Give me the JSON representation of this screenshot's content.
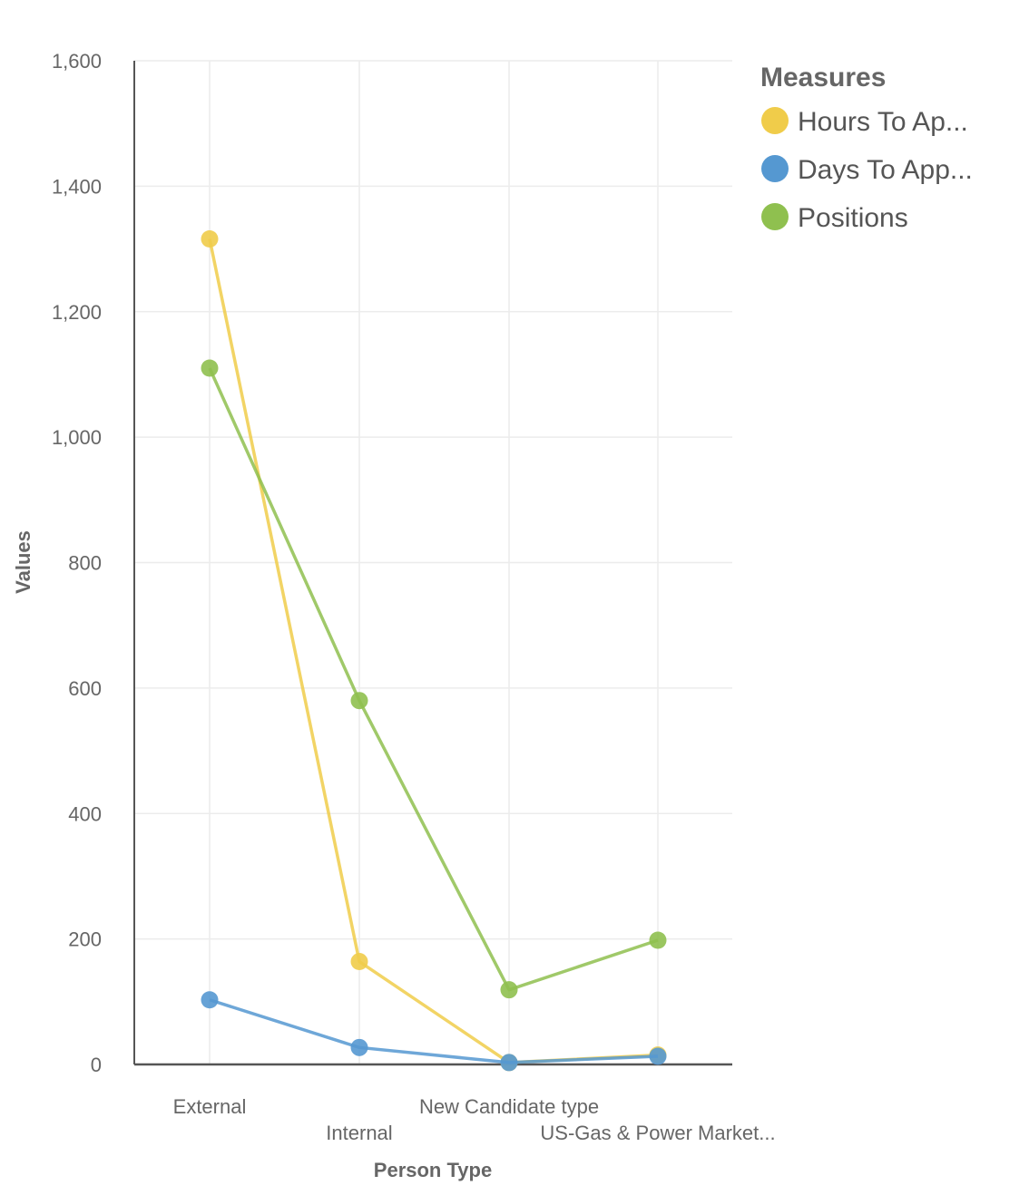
{
  "chart_data": {
    "type": "line",
    "title": "",
    "xlabel": "Person Type",
    "ylabel": "Values",
    "categories": [
      "External",
      "Internal",
      "New Candidate type",
      "US-Gas & Power Market..."
    ],
    "ylim": [
      0,
      1600
    ],
    "yticks": [
      0,
      200,
      400,
      600,
      800,
      1000,
      1200,
      1400,
      1600
    ],
    "ytick_labels": [
      "0",
      "200",
      "400",
      "600",
      "800",
      "1,000",
      "1,200",
      "1,400",
      "1,600"
    ],
    "grid": true,
    "legend_title": "Measures",
    "legend_position": "top-right",
    "series": [
      {
        "name": "Hours To Ap...",
        "color": "#f0cc4a",
        "values": [
          1316,
          164,
          3,
          15
        ]
      },
      {
        "name": "Days To App...",
        "color": "#5598d1",
        "values": [
          103,
          27,
          3,
          13
        ]
      },
      {
        "name": "Positions",
        "color": "#8fc04f",
        "values": [
          1110,
          580,
          119,
          198
        ]
      }
    ]
  }
}
